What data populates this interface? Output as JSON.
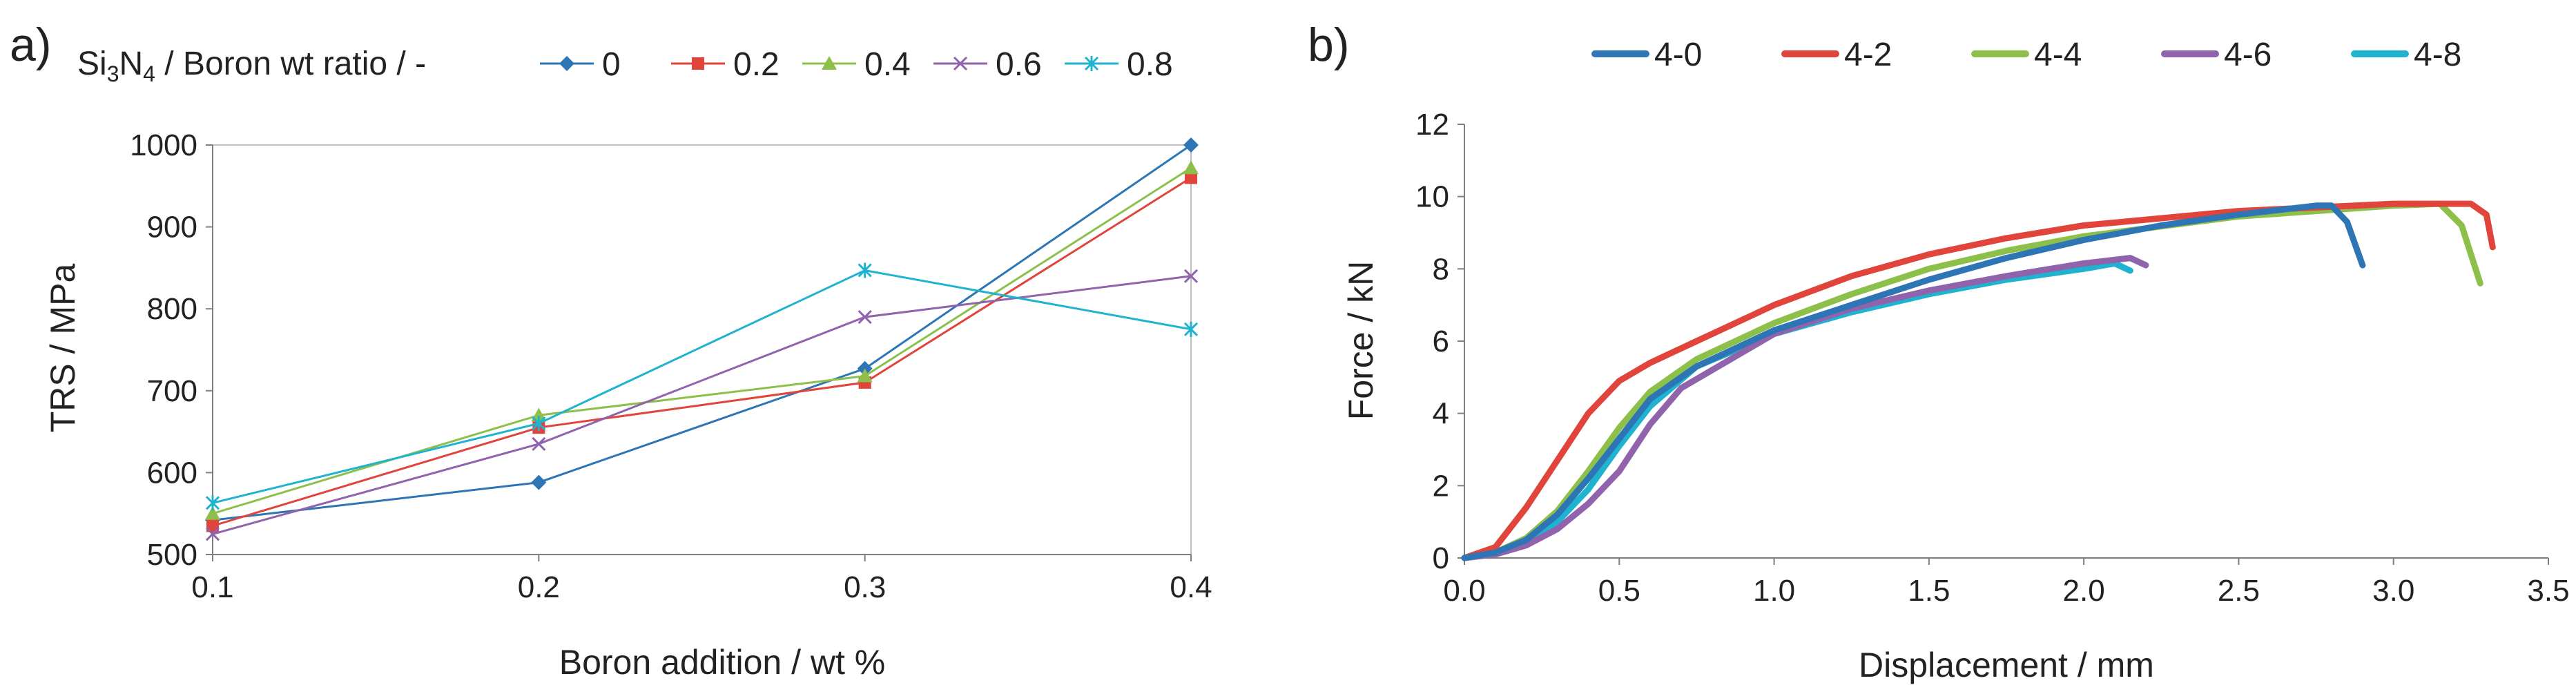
{
  "chart_data": [
    {
      "panel": "a)",
      "type": "line",
      "legend_title_base": "Si",
      "legend_title_sub1": "3",
      "legend_title_mid": "N",
      "legend_title_sub2": "4",
      "legend_title_rest": " / Boron wt ratio / -",
      "x": [
        0.1,
        0.2,
        0.3,
        0.4
      ],
      "series": [
        {
          "name": "0",
          "color": "#2e75b6",
          "marker": "diamond",
          "values": [
            542,
            588,
            727,
            1000
          ]
        },
        {
          "name": "0.2",
          "color": "#e0443b",
          "marker": "square",
          "values": [
            535,
            655,
            710,
            960
          ]
        },
        {
          "name": "0.4",
          "color": "#8cc04b",
          "marker": "triangle",
          "values": [
            550,
            670,
            718,
            972
          ]
        },
        {
          "name": "0.6",
          "color": "#9063ac",
          "marker": "x",
          "values": [
            525,
            635,
            790,
            840
          ]
        },
        {
          "name": "0.8",
          "color": "#1fb3cf",
          "marker": "star",
          "values": [
            563,
            660,
            847,
            775
          ]
        }
      ],
      "xlabel": "Boron addition / wt %",
      "ylabel": "TRS / MPa",
      "xlim": [
        0.1,
        0.4
      ],
      "ylim": [
        500,
        1000
      ],
      "xticks": [
        "0.1",
        "0.2",
        "0.3",
        "0.4"
      ],
      "yticks": [
        "500",
        "600",
        "700",
        "800",
        "900",
        "1000"
      ],
      "legend_position": "top"
    },
    {
      "panel": "b)",
      "type": "line",
      "series": [
        {
          "name": "4-0",
          "color": "#2e75b6",
          "points": [
            [
              0,
              0
            ],
            [
              0.1,
              0.15
            ],
            [
              0.2,
              0.5
            ],
            [
              0.3,
              1.2
            ],
            [
              0.4,
              2.2
            ],
            [
              0.5,
              3.3
            ],
            [
              0.6,
              4.4
            ],
            [
              0.75,
              5.3
            ],
            [
              1.0,
              6.3
            ],
            [
              1.25,
              7.0
            ],
            [
              1.5,
              7.7
            ],
            [
              1.75,
              8.3
            ],
            [
              2.0,
              8.8
            ],
            [
              2.25,
              9.2
            ],
            [
              2.5,
              9.5
            ],
            [
              2.75,
              9.75
            ],
            [
              2.8,
              9.75
            ],
            [
              2.85,
              9.3
            ],
            [
              2.9,
              8.1
            ]
          ]
        },
        {
          "name": "4-2",
          "color": "#e0443b",
          "points": [
            [
              0,
              0
            ],
            [
              0.1,
              0.3
            ],
            [
              0.2,
              1.4
            ],
            [
              0.3,
              2.7
            ],
            [
              0.4,
              4.0
            ],
            [
              0.5,
              4.9
            ],
            [
              0.6,
              5.4
            ],
            [
              0.75,
              6.0
            ],
            [
              1.0,
              7.0
            ],
            [
              1.25,
              7.8
            ],
            [
              1.5,
              8.4
            ],
            [
              1.75,
              8.85
            ],
            [
              2.0,
              9.2
            ],
            [
              2.5,
              9.6
            ],
            [
              3.0,
              9.8
            ],
            [
              3.25,
              9.8
            ],
            [
              3.3,
              9.5
            ],
            [
              3.32,
              8.6
            ]
          ]
        },
        {
          "name": "4-4",
          "color": "#8cc04b",
          "points": [
            [
              0,
              0
            ],
            [
              0.1,
              0.15
            ],
            [
              0.2,
              0.55
            ],
            [
              0.3,
              1.3
            ],
            [
              0.4,
              2.4
            ],
            [
              0.5,
              3.6
            ],
            [
              0.6,
              4.6
            ],
            [
              0.75,
              5.5
            ],
            [
              1.0,
              6.5
            ],
            [
              1.25,
              7.3
            ],
            [
              1.5,
              8.0
            ],
            [
              1.75,
              8.5
            ],
            [
              2.0,
              8.9
            ],
            [
              2.5,
              9.45
            ],
            [
              3.0,
              9.75
            ],
            [
              3.15,
              9.8
            ],
            [
              3.22,
              9.2
            ],
            [
              3.28,
              7.6
            ]
          ]
        },
        {
          "name": "4-6",
          "color": "#9063ac",
          "points": [
            [
              0,
              0
            ],
            [
              0.1,
              0.1
            ],
            [
              0.2,
              0.35
            ],
            [
              0.3,
              0.8
            ],
            [
              0.4,
              1.5
            ],
            [
              0.5,
              2.4
            ],
            [
              0.6,
              3.7
            ],
            [
              0.7,
              4.7
            ],
            [
              1.0,
              6.2
            ],
            [
              1.25,
              6.9
            ],
            [
              1.5,
              7.4
            ],
            [
              1.75,
              7.8
            ],
            [
              2.0,
              8.15
            ],
            [
              2.15,
              8.3
            ],
            [
              2.2,
              8.1
            ]
          ]
        },
        {
          "name": "4-8",
          "color": "#1fb3cf",
          "points": [
            [
              0,
              0
            ],
            [
              0.1,
              0.12
            ],
            [
              0.2,
              0.45
            ],
            [
              0.3,
              1.0
            ],
            [
              0.4,
              1.9
            ],
            [
              0.5,
              3.1
            ],
            [
              0.6,
              4.2
            ],
            [
              0.75,
              5.3
            ],
            [
              1.0,
              6.2
            ],
            [
              1.25,
              6.8
            ],
            [
              1.5,
              7.3
            ],
            [
              1.75,
              7.7
            ],
            [
              2.0,
              8.0
            ],
            [
              2.1,
              8.15
            ],
            [
              2.15,
              7.95
            ]
          ]
        }
      ],
      "xlabel": "Displacement / mm",
      "ylabel": "Force / kN",
      "xlim": [
        0,
        3.5
      ],
      "ylim": [
        0,
        12
      ],
      "xticks": [
        "0.0",
        "0.5",
        "1.0",
        "1.5",
        "2.0",
        "2.5",
        "3.0",
        "3.5"
      ],
      "yticks": [
        "0",
        "2",
        "4",
        "6",
        "8",
        "10",
        "12"
      ],
      "legend_position": "top"
    }
  ]
}
